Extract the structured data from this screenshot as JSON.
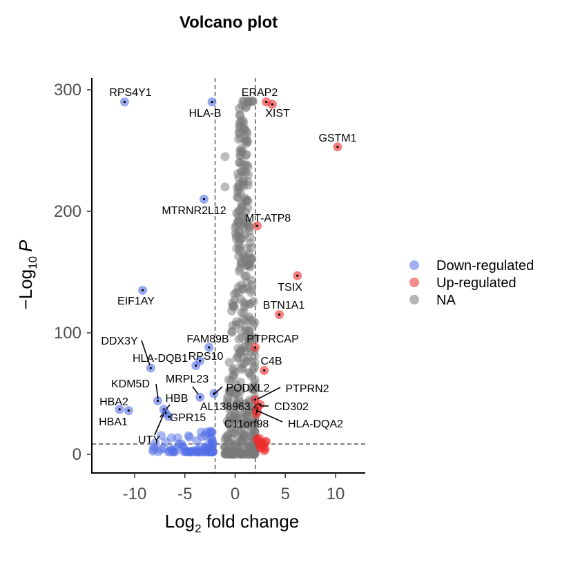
{
  "chart_data": {
    "type": "scatter",
    "title": "Volcano plot",
    "xlabel": {
      "main": "Log",
      "sub": "2",
      "rest": " fold change"
    },
    "ylabel": {
      "prefix": "−Log",
      "sub": "10",
      "italic": "P"
    },
    "xlim": [
      -14,
      13
    ],
    "ylim": [
      -15,
      310
    ],
    "x_ticks": [
      -10,
      -5,
      0,
      5,
      10
    ],
    "x_tick_labels": [
      "-10",
      "-5",
      "0",
      "5",
      "10"
    ],
    "y_ticks": [
      0,
      100,
      200,
      300
    ],
    "y_tick_labels": [
      "0",
      "100",
      "200",
      "300"
    ],
    "cutoffs": {
      "fc": [
        -2,
        2
      ],
      "p": 8.5
    },
    "colors": {
      "down": "#5470e6",
      "up": "#ee2a2a",
      "na": "#7a7a7a"
    },
    "legend": {
      "position": "right",
      "entries": [
        {
          "key": "down",
          "label": "Down-regulated"
        },
        {
          "key": "up",
          "label": "Up-regulated"
        },
        {
          "key": "na",
          "label": "NA"
        }
      ]
    },
    "labeled_points": [
      {
        "gene": "RPS4Y1",
        "x": -11.0,
        "y": 290,
        "group": "down"
      },
      {
        "gene": "HLA-B",
        "x": -2.3,
        "y": 290,
        "group": "down"
      },
      {
        "gene": "ERAP2",
        "x": 3.1,
        "y": 290,
        "group": "up"
      },
      {
        "gene": "XIST",
        "x": 3.7,
        "y": 288,
        "group": "up"
      },
      {
        "gene": "GSTM1",
        "x": 10.2,
        "y": 253,
        "group": "up"
      },
      {
        "gene": "MTRNR2L12",
        "x": -3.1,
        "y": 210,
        "group": "down"
      },
      {
        "gene": "MT-ATP8",
        "x": 2.2,
        "y": 188,
        "group": "up"
      },
      {
        "gene": "TSIX",
        "x": 6.2,
        "y": 147,
        "group": "up"
      },
      {
        "gene": "EIF1AY",
        "x": -9.2,
        "y": 135,
        "group": "down"
      },
      {
        "gene": "BTN1A1",
        "x": 4.4,
        "y": 115,
        "group": "up"
      },
      {
        "gene": "DDX3Y",
        "x": -8.4,
        "y": 71,
        "group": "down"
      },
      {
        "gene": "FAM89B",
        "x": -2.6,
        "y": 88,
        "group": "down"
      },
      {
        "gene": "PTPRCAP",
        "x": 2.0,
        "y": 88,
        "group": "up"
      },
      {
        "gene": "HLA-DQB1",
        "x": -3.9,
        "y": 73,
        "group": "down"
      },
      {
        "gene": "RPS10",
        "x": -3.5,
        "y": 77,
        "group": "down"
      },
      {
        "gene": "C4B",
        "x": 2.9,
        "y": 69,
        "group": "up"
      },
      {
        "gene": "KDM5D",
        "x": -7.7,
        "y": 44,
        "group": "down"
      },
      {
        "gene": "MRPL23",
        "x": -3.5,
        "y": 47,
        "group": "down"
      },
      {
        "gene": "PODXL2",
        "x": -2.1,
        "y": 50,
        "group": "down"
      },
      {
        "gene": "PTPRN2",
        "x": 2.0,
        "y": 45,
        "group": "up"
      },
      {
        "gene": "HBA2",
        "x": -11.5,
        "y": 37,
        "group": "down"
      },
      {
        "gene": "HBA1",
        "x": -10.6,
        "y": 36,
        "group": "down"
      },
      {
        "gene": "HBB",
        "x": -7.1,
        "y": 37,
        "group": "down"
      },
      {
        "gene": "AL138963.4",
        "x": 2.2,
        "y": 38,
        "group": "up"
      },
      {
        "gene": "CD302",
        "x": 2.5,
        "y": 41,
        "group": "up"
      },
      {
        "gene": "GPR15",
        "x": -6.6,
        "y": 31,
        "group": "down"
      },
      {
        "gene": "C11orf98",
        "x": 2.1,
        "y": 33,
        "group": "up"
      },
      {
        "gene": "HLA-DQA2",
        "x": 2.2,
        "y": 35,
        "group": "up"
      },
      {
        "gene": "UTY",
        "x": -6.9,
        "y": 34,
        "group": "down"
      }
    ]
  }
}
